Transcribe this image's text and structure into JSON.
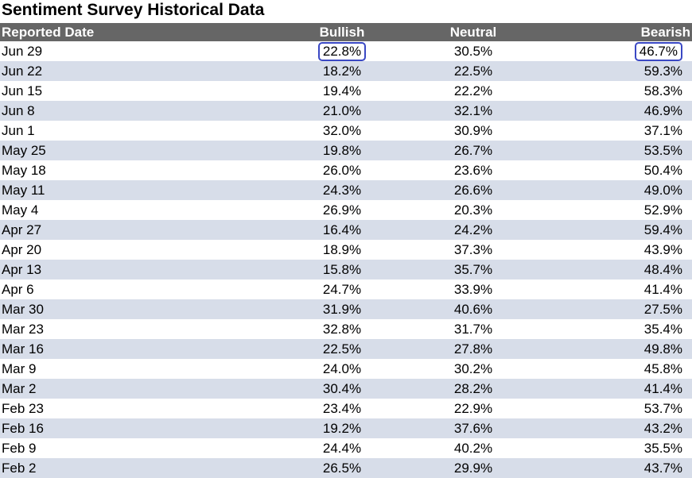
{
  "title": "Sentiment Survey Historical Data",
  "columns": {
    "date": "Reported Date",
    "bullish": "Bullish",
    "neutral": "Neutral",
    "bearish": "Bearish"
  },
  "highlight_color": "#3a48c4",
  "rows": [
    {
      "date": "Jun 29",
      "bullish": "22.8%",
      "neutral": "30.5%",
      "bearish": "46.7%",
      "highlighted": true
    },
    {
      "date": "Jun 22",
      "bullish": "18.2%",
      "neutral": "22.5%",
      "bearish": "59.3%"
    },
    {
      "date": "Jun 15",
      "bullish": "19.4%",
      "neutral": "22.2%",
      "bearish": "58.3%"
    },
    {
      "date": "Jun 8",
      "bullish": "21.0%",
      "neutral": "32.1%",
      "bearish": "46.9%"
    },
    {
      "date": "Jun 1",
      "bullish": "32.0%",
      "neutral": "30.9%",
      "bearish": "37.1%"
    },
    {
      "date": "May 25",
      "bullish": "19.8%",
      "neutral": "26.7%",
      "bearish": "53.5%"
    },
    {
      "date": "May 18",
      "bullish": "26.0%",
      "neutral": "23.6%",
      "bearish": "50.4%"
    },
    {
      "date": "May 11",
      "bullish": "24.3%",
      "neutral": "26.6%",
      "bearish": "49.0%"
    },
    {
      "date": "May 4",
      "bullish": "26.9%",
      "neutral": "20.3%",
      "bearish": "52.9%"
    },
    {
      "date": "Apr 27",
      "bullish": "16.4%",
      "neutral": "24.2%",
      "bearish": "59.4%"
    },
    {
      "date": "Apr 20",
      "bullish": "18.9%",
      "neutral": "37.3%",
      "bearish": "43.9%"
    },
    {
      "date": "Apr 13",
      "bullish": "15.8%",
      "neutral": "35.7%",
      "bearish": "48.4%"
    },
    {
      "date": "Apr 6",
      "bullish": "24.7%",
      "neutral": "33.9%",
      "bearish": "41.4%"
    },
    {
      "date": "Mar 30",
      "bullish": "31.9%",
      "neutral": "40.6%",
      "bearish": "27.5%"
    },
    {
      "date": "Mar 23",
      "bullish": "32.8%",
      "neutral": "31.7%",
      "bearish": "35.4%"
    },
    {
      "date": "Mar 16",
      "bullish": "22.5%",
      "neutral": "27.8%",
      "bearish": "49.8%"
    },
    {
      "date": "Mar 9",
      "bullish": "24.0%",
      "neutral": "30.2%",
      "bearish": "45.8%"
    },
    {
      "date": "Mar 2",
      "bullish": "30.4%",
      "neutral": "28.2%",
      "bearish": "41.4%"
    },
    {
      "date": "Feb 23",
      "bullish": "23.4%",
      "neutral": "22.9%",
      "bearish": "53.7%"
    },
    {
      "date": "Feb 16",
      "bullish": "19.2%",
      "neutral": "37.6%",
      "bearish": "43.2%"
    },
    {
      "date": "Feb 9",
      "bullish": "24.4%",
      "neutral": "40.2%",
      "bearish": "35.5%"
    },
    {
      "date": "Feb 2",
      "bullish": "26.5%",
      "neutral": "29.9%",
      "bearish": "43.7%"
    }
  ]
}
